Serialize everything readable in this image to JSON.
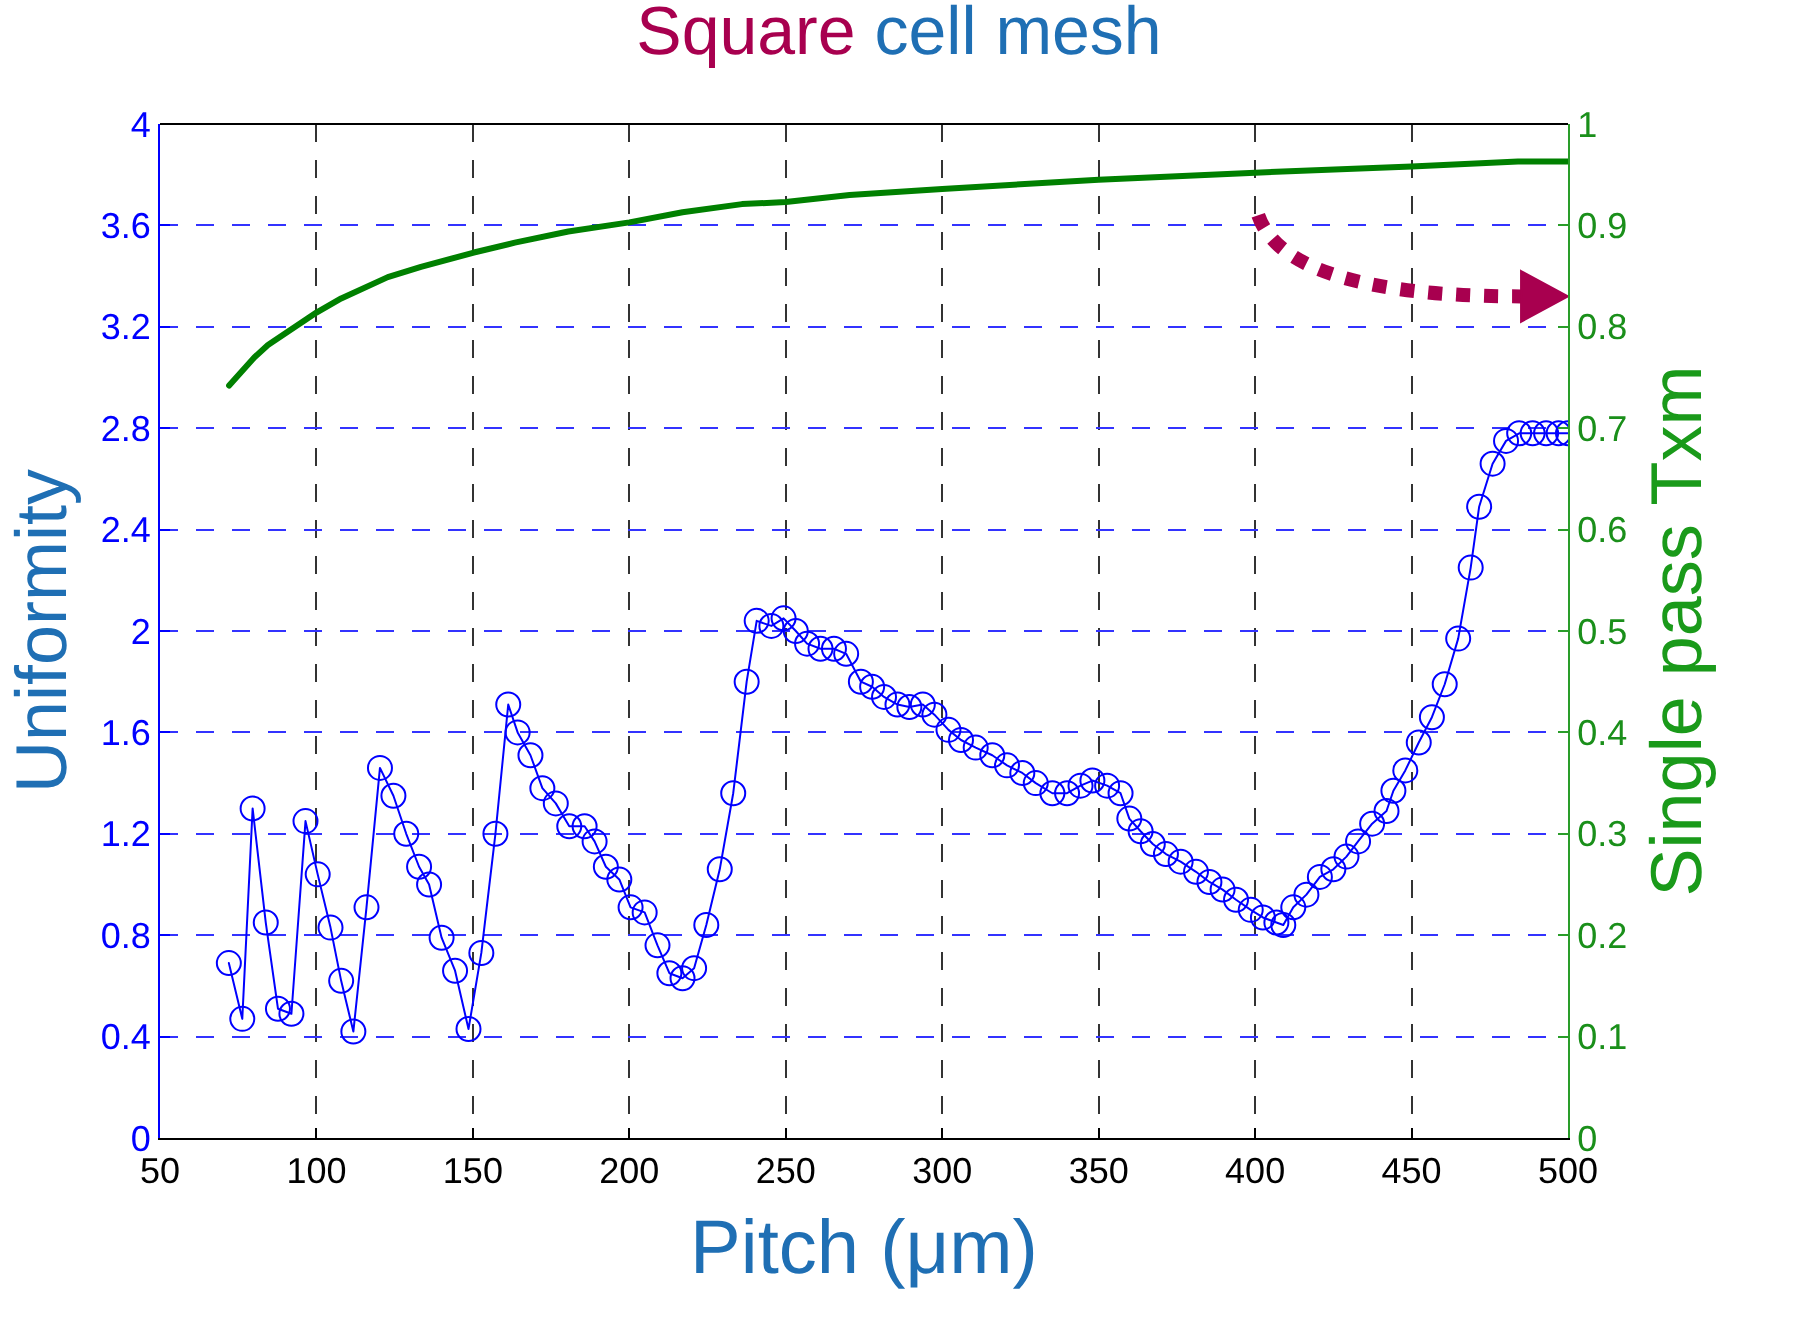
{
  "chart_data": {
    "type": "line",
    "title": "Square cell mesh",
    "xlabel": "Pitch (μm)",
    "ylabel": "Uniformity",
    "y2label": "Single pass Txm",
    "xlim": [
      50,
      500
    ],
    "xticks": [
      50,
      100,
      150,
      200,
      250,
      300,
      350,
      400,
      450,
      500
    ],
    "ylim": [
      0,
      4
    ],
    "yticks": [
      0,
      0.4,
      0.8,
      1.2,
      1.6,
      2,
      2.4,
      2.8,
      3.2,
      3.6,
      4
    ],
    "y2lim": [
      0,
      1
    ],
    "y2ticks": [
      0,
      0.1,
      0.2,
      0.3,
      0.4,
      0.5,
      0.6,
      0.7,
      0.8,
      0.9,
      1
    ],
    "grid": true,
    "series": [
      {
        "color": "#0000ff",
        "marker": "circle",
        "line_style": "solid",
        "x": [
          72,
          76.3,
          79.6,
          83.8,
          87.7,
          92,
          96.5,
          100.4,
          104.5,
          107.9,
          111.8,
          116,
          120.3,
          124.6,
          128.7,
          132.8,
          136,
          140,
          144.3,
          148.6,
          152.7,
          157.2,
          161.3,
          164.3,
          168.4,
          172.2,
          176.5,
          180.8,
          185.7,
          188.9,
          192.5,
          196.8,
          200.4,
          204.9,
          209,
          212.8,
          217,
          220.7,
          224.6,
          228.9,
          233.2,
          237.5,
          240.7,
          245.4,
          249.3,
          253.2,
          256.8,
          261.1,
          265.4,
          269.3,
          274,
          277.6,
          281.4,
          285.7,
          289.5,
          293.8,
          297.5,
          302,
          306,
          310.7,
          316,
          320.7,
          325.6,
          329.9,
          335.2,
          339.9,
          344.2,
          348,
          352.7,
          357,
          359.8,
          363.4,
          367.3,
          371.5,
          376.2,
          381.1,
          385.4,
          389.6,
          393.9,
          398.6,
          402.5,
          406.8,
          409,
          412.2,
          416.4,
          420.7,
          425,
          429.2,
          432.9,
          437.4,
          442,
          444.2,
          448,
          452.3,
          456.5,
          460.6,
          464.9,
          468.9,
          471.6,
          475.9,
          480.2,
          484.4,
          488.7,
          493,
          497,
          500
        ],
        "values": [
          0.69,
          0.47,
          1.3,
          0.85,
          0.51,
          0.49,
          1.25,
          1.04,
          0.83,
          0.62,
          0.42,
          0.91,
          1.46,
          1.35,
          1.2,
          1.07,
          1.0,
          0.79,
          0.66,
          0.43,
          0.73,
          1.2,
          1.71,
          1.6,
          1.51,
          1.38,
          1.32,
          1.23,
          1.23,
          1.17,
          1.07,
          1.02,
          0.91,
          0.89,
          0.76,
          0.65,
          0.63,
          0.67,
          0.84,
          1.06,
          1.36,
          1.8,
          2.04,
          2.02,
          2.05,
          2.0,
          1.95,
          1.93,
          1.93,
          1.91,
          1.8,
          1.78,
          1.74,
          1.71,
          1.7,
          1.71,
          1.67,
          1.61,
          1.57,
          1.54,
          1.51,
          1.47,
          1.44,
          1.4,
          1.36,
          1.36,
          1.39,
          1.41,
          1.39,
          1.36,
          1.26,
          1.21,
          1.16,
          1.12,
          1.09,
          1.05,
          1.01,
          0.98,
          0.94,
          0.9,
          0.87,
          0.85,
          0.84,
          0.91,
          0.96,
          1.03,
          1.06,
          1.11,
          1.17,
          1.24,
          1.29,
          1.37,
          1.45,
          1.56,
          1.66,
          1.79,
          1.97,
          2.25,
          2.49,
          2.66,
          2.75,
          2.78,
          2.78,
          2.78,
          2.78,
          2.78
        ]
      },
      {
        "color": "#008000",
        "marker": "none",
        "line_style": "solid",
        "axis": "y2",
        "x": [
          72.1,
          80.2,
          84.5,
          100,
          107.9,
          122.8,
          133.4,
          150,
          163.4,
          180.5,
          200,
          217,
          236,
          250,
          270.4,
          300,
          350,
          400,
          450,
          484,
          500
        ],
        "values": [
          0.742,
          0.77,
          0.782,
          0.814,
          0.828,
          0.849,
          0.859,
          0.873,
          0.883,
          0.894,
          0.903,
          0.913,
          0.921,
          0.923,
          0.93,
          0.936,
          0.945,
          0.952,
          0.958,
          0.963,
          0.963
        ]
      }
    ]
  }
}
